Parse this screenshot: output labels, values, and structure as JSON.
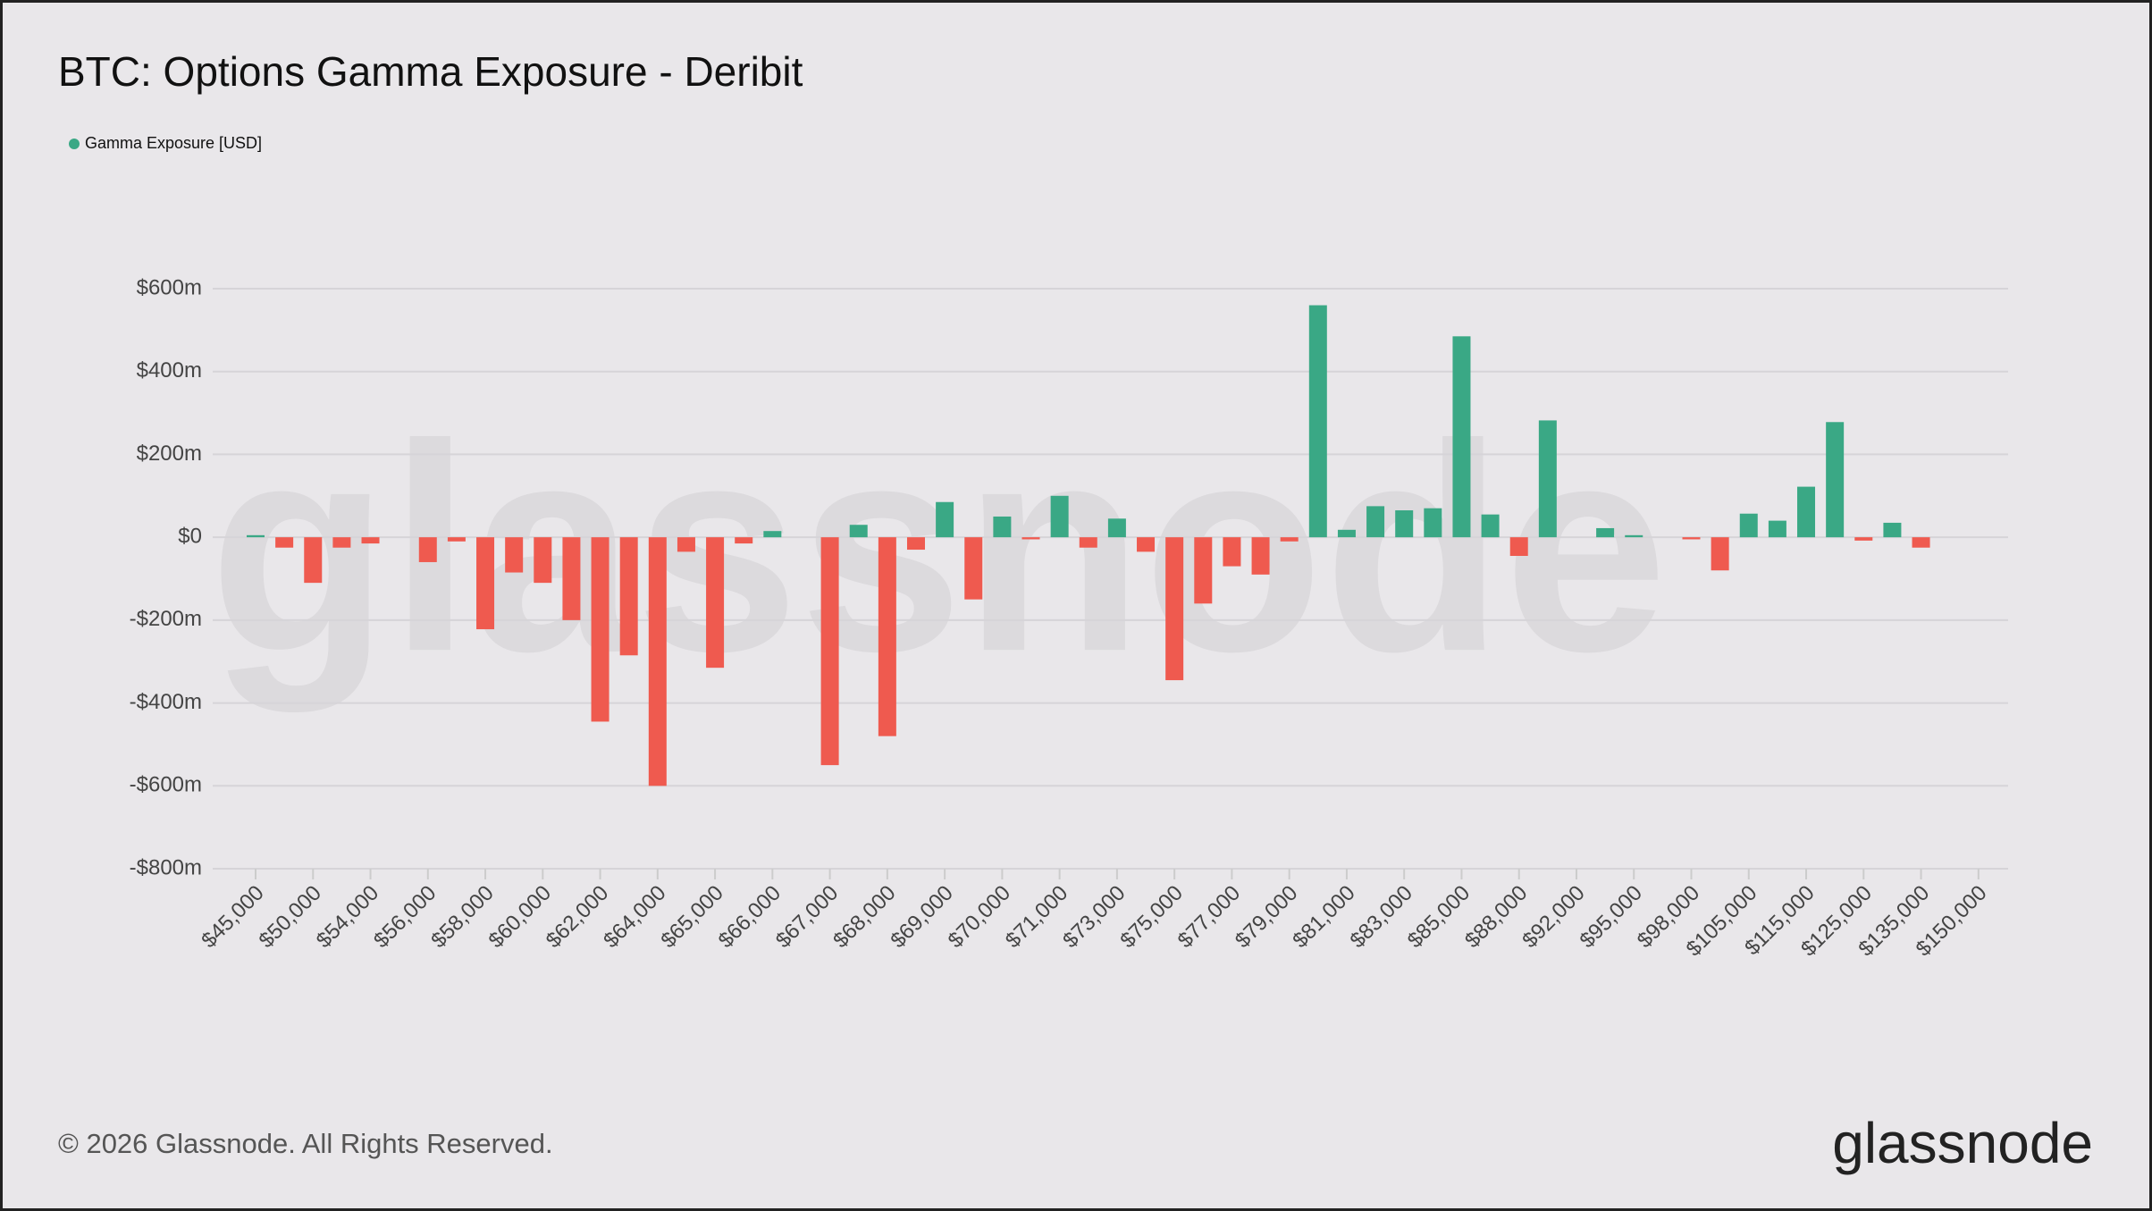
{
  "chart_data": {
    "type": "bar",
    "title": "BTC: Options Gamma Exposure - Deribit",
    "legend": "Gamma Exposure [USD]",
    "footer": "© 2026 Glassnode. All Rights Reserved.",
    "logo": "glassnode",
    "watermark": "glassnode",
    "positive_color": "#3aa885",
    "negative_color": "#ef5a4f",
    "grid": true,
    "categories": [
      "$45,000",
      null,
      "$50,000",
      null,
      "$54,000",
      null,
      "$56,000",
      null,
      "$58,000",
      null,
      "$60,000",
      null,
      "$62,000",
      null,
      "$64,000",
      null,
      "$65,000",
      null,
      "$66,000",
      null,
      "$67,000",
      null,
      "$68,000",
      null,
      "$69,000",
      null,
      "$70,000",
      null,
      "$71,000",
      null,
      "$73,000",
      null,
      "$75,000",
      null,
      "$77,000",
      null,
      "$79,000",
      null,
      "$81,000",
      null,
      "$83,000",
      null,
      "$85,000",
      null,
      "$88,000",
      null,
      "$92,000",
      null,
      "$95,000",
      null,
      "$98,000",
      null,
      "$105,000",
      null,
      "$115,000",
      null,
      "$125,000",
      null,
      "$135,000",
      null,
      "$150,000"
    ],
    "values": [
      5,
      -25,
      -110,
      -25,
      -15,
      null,
      -60,
      -10,
      -222,
      -85,
      -110,
      -200,
      -445,
      -285,
      -600,
      -35,
      -315,
      -15,
      15,
      null,
      -550,
      30,
      -480,
      -30,
      85,
      -150,
      50,
      -5,
      100,
      -25,
      45,
      -35,
      -345,
      -160,
      -70,
      -90,
      -10,
      560,
      18,
      75,
      65,
      70,
      485,
      55,
      -45,
      282,
      null,
      22,
      5,
      null,
      -5,
      -80,
      57,
      40,
      122,
      278,
      -8,
      35,
      -25,
      null,
      null
    ],
    "ylim": [
      -800,
      600
    ],
    "yticks": [
      {
        "value": -800,
        "label": "-$800m"
      },
      {
        "value": -600,
        "label": "-$600m"
      },
      {
        "value": -400,
        "label": "-$400m"
      },
      {
        "value": -200,
        "label": "-$200m"
      },
      {
        "value": 0,
        "label": "$0"
      },
      {
        "value": 200,
        "label": "$200m"
      },
      {
        "value": 400,
        "label": "$400m"
      },
      {
        "value": 600,
        "label": "$600m"
      }
    ]
  }
}
